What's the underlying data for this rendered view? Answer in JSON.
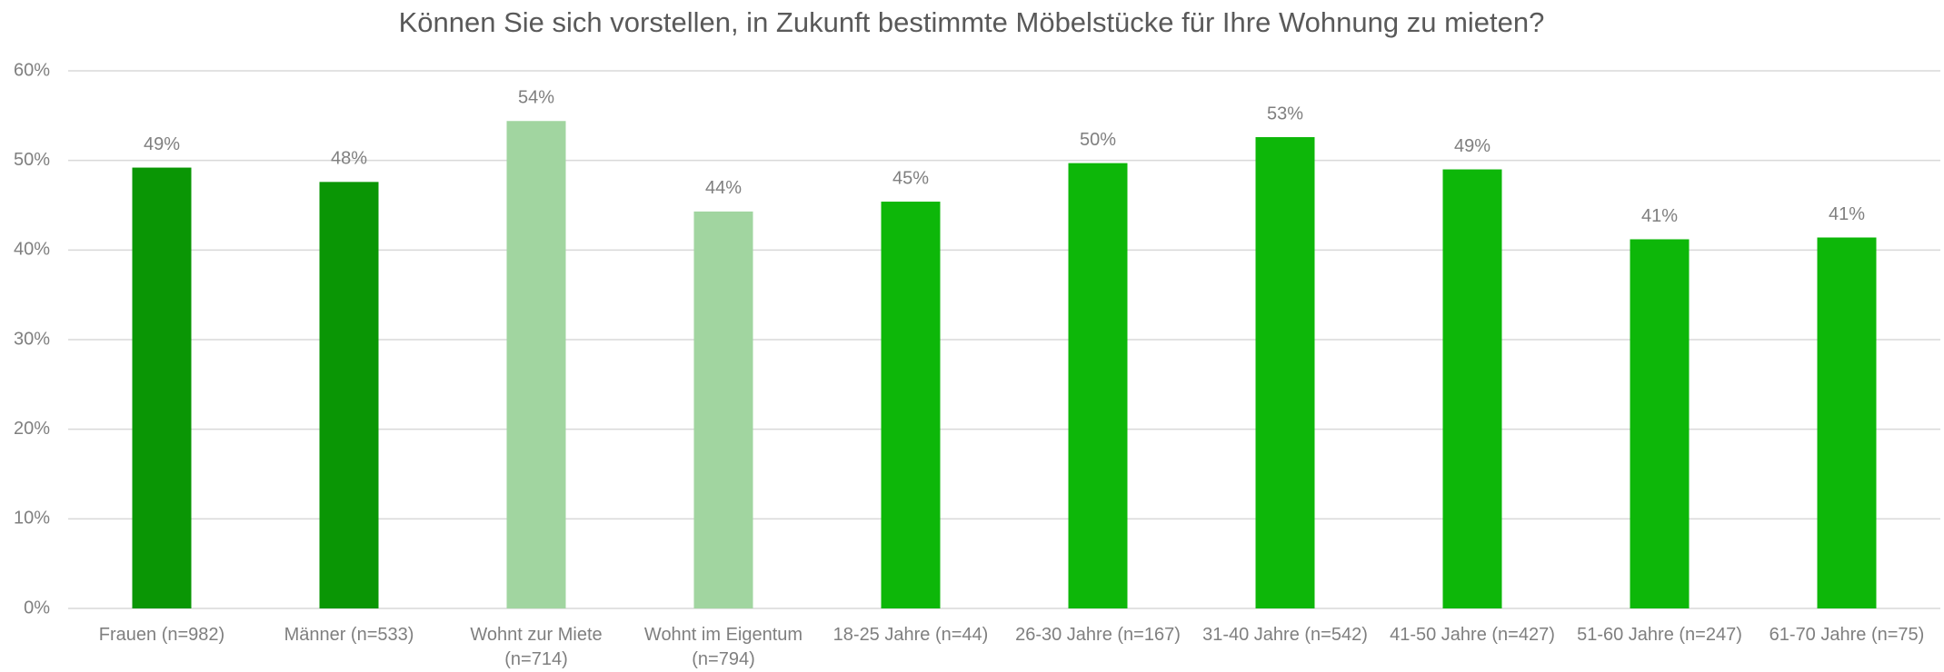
{
  "chart_data": {
    "type": "bar",
    "title": "Können Sie sich vorstellen, in Zukunft bestimmte Möbelstücke für Ihre Wohnung zu mieten?",
    "categories": [
      "Frauen (n=982)",
      "Männer (n=533)",
      "Wohnt zur Miete (n=714)",
      "Wohnt im Eigentum (n=794)",
      "18-25 Jahre (n=44)",
      "26-30 Jahre (n=167)",
      "31-40 Jahre (n=542)",
      "41-50 Jahre (n=427)",
      "51-60 Jahre (n=247)",
      "61-70 Jahre (n=75)"
    ],
    "values": [
      49.2,
      47.6,
      54.4,
      44.3,
      45.4,
      49.7,
      52.6,
      49.0,
      41.2,
      41.4
    ],
    "value_labels": [
      "49%",
      "48%",
      "54%",
      "44%",
      "45%",
      "50%",
      "53%",
      "49%",
      "41%",
      "41%"
    ],
    "colors": [
      "#0a9605",
      "#0a9605",
      "#a1d5a0",
      "#a1d5a0",
      "#0db709",
      "#0db709",
      "#0db709",
      "#0db709",
      "#0db709",
      "#0db709"
    ],
    "ylim": [
      0,
      60
    ],
    "yticks": [
      {
        "value": 0,
        "label": "0%"
      },
      {
        "value": 10,
        "label": "10%"
      },
      {
        "value": 20,
        "label": "20%"
      },
      {
        "value": 30,
        "label": "30%"
      },
      {
        "value": 40,
        "label": "40%"
      },
      {
        "value": 50,
        "label": "50%"
      },
      {
        "value": 60,
        "label": "60%"
      }
    ],
    "grid": true
  }
}
